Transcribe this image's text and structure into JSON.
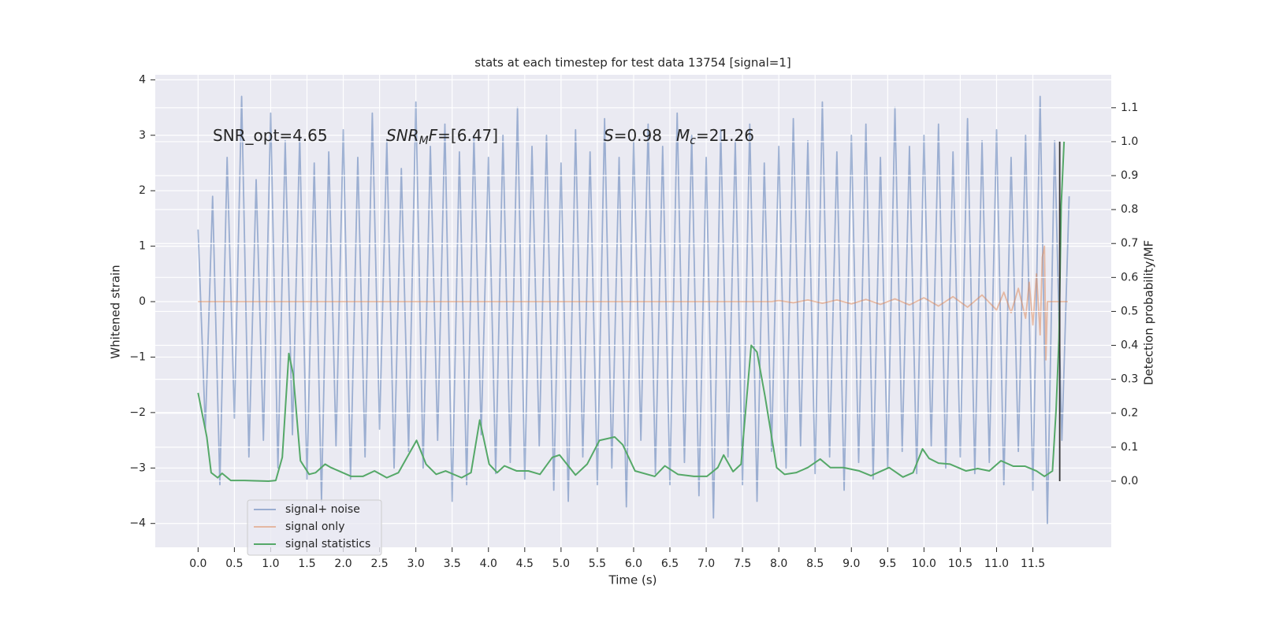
{
  "chart_data": {
    "type": "line",
    "title": "stats at each timestep for test data 13754 [signal=1]",
    "x_label": "Time (s)",
    "y_label": "Whitened strain",
    "y2_label": "Detection probability/MF",
    "grid": true,
    "legend": "lower left",
    "xlim": [
      -0.59,
      12.58
    ],
    "ylim": [
      -4.43,
      4.09
    ],
    "y2lim": [
      -0.195,
      1.197
    ],
    "xticks": [
      {
        "value": 0,
        "label": "0.0"
      },
      0.5,
      {
        "value": 1,
        "label": "1.0"
      },
      1.5,
      {
        "value": 2,
        "label": "2.0"
      },
      2.5,
      {
        "value": 3,
        "label": "3.0"
      },
      3.5,
      {
        "value": 4,
        "label": "4.0"
      },
      4.5,
      {
        "value": 5,
        "label": "5.0"
      },
      5.5,
      {
        "value": 6,
        "label": "6.0"
      },
      6.5,
      {
        "value": 7,
        "label": "7.0"
      },
      7.5,
      {
        "value": 8,
        "label": "8.0"
      },
      8.5,
      {
        "value": 9,
        "label": "9.0"
      },
      9.5,
      {
        "value": 10,
        "label": "10.0"
      },
      10.5,
      {
        "value": 11,
        "label": "11.0"
      },
      11.5
    ],
    "yticks": [
      {
        "value": -4,
        "label": "−4"
      },
      {
        "value": -3,
        "label": "−3"
      },
      {
        "value": -2,
        "label": "−2"
      },
      {
        "value": -1,
        "label": "−1"
      },
      0,
      1,
      2,
      3,
      4
    ],
    "y2ticks": [
      {
        "value": 0,
        "label": "0.0"
      },
      0.1,
      0.2,
      0.3,
      0.4,
      0.5,
      0.6,
      0.7,
      0.8,
      0.9,
      {
        "value": 1,
        "label": "1.0"
      },
      1.1
    ],
    "annotations": [
      [
        {
          "text": "SNR_opt=4.65"
        }
      ],
      [
        {
          "text": "SNR",
          "italic": true
        },
        {
          "text": "M",
          "italic": true,
          "sub": true
        },
        {
          "text": "F",
          "italic": true
        },
        {
          "text": "=[6.47]"
        }
      ],
      [
        {
          "text": "S",
          "italic": true
        },
        {
          "text": "=0.98"
        }
      ],
      [
        {
          "text": "M",
          "italic": true
        },
        {
          "text": "c",
          "italic": true,
          "sub": true
        },
        {
          "text": "=21.26"
        }
      ]
    ],
    "series": [
      {
        "name": "signal+ noise",
        "color": "#4c72b0",
        "alpha": 0.5,
        "x": [
          0,
          0.1,
          0.2,
          0.3,
          0.4,
          0.5,
          0.6,
          0.7,
          0.8,
          0.9,
          1,
          1.1,
          1.2,
          1.3,
          1.4,
          1.5,
          1.6,
          1.7,
          1.8,
          1.9,
          2,
          2.1,
          2.2,
          2.3,
          2.4,
          2.5,
          2.6,
          2.7,
          2.8,
          2.9,
          3,
          3.1,
          3.2,
          3.3,
          3.4,
          3.5,
          3.6,
          3.7,
          3.8,
          3.9,
          4,
          4.1,
          4.2,
          4.3,
          4.4,
          4.5,
          4.6,
          4.7,
          4.8,
          4.9,
          5,
          5.1,
          5.2,
          5.3,
          5.4,
          5.5,
          5.6,
          5.7,
          5.8,
          5.9,
          6,
          6.1,
          6.2,
          6.3,
          6.4,
          6.5,
          6.6,
          6.7,
          6.8,
          6.9,
          7,
          7.1,
          7.2,
          7.3,
          7.4,
          7.5,
          7.6,
          7.7,
          7.8,
          7.9,
          8,
          8.1,
          8.2,
          8.3,
          8.4,
          8.5,
          8.6,
          8.7,
          8.8,
          8.9,
          9,
          9.1,
          9.2,
          9.3,
          9.4,
          9.5,
          9.6,
          9.7,
          9.8,
          9.9,
          10,
          10.1,
          10.2,
          10.3,
          10.4,
          10.5,
          10.6,
          10.7,
          10.8,
          10.9,
          11,
          11.1,
          11.2,
          11.3,
          11.4,
          11.5,
          11.6,
          11.7,
          11.8,
          11.9,
          12
        ],
        "values": [
          1.3,
          -2.3,
          1.9,
          -3.3,
          2.6,
          -2.1,
          3.7,
          -2.8,
          2.2,
          -2.5,
          3.4,
          -3.0,
          2.9,
          -2.4,
          3.0,
          -3.2,
          2.5,
          -3.6,
          2.7,
          -2.6,
          3.1,
          -3.2,
          2.6,
          -2.8,
          3.4,
          -2.3,
          2.9,
          -3.0,
          2.4,
          -2.7,
          3.6,
          -3.0,
          2.8,
          -2.5,
          3.2,
          -3.6,
          2.7,
          -3.3,
          3.0,
          -2.4,
          2.6,
          -3.1,
          3.0,
          -2.9,
          3.5,
          -3.2,
          2.8,
          -2.6,
          3.0,
          -3.4,
          2.5,
          -3.6,
          3.1,
          -2.8,
          2.7,
          -3.3,
          3.3,
          -3.0,
          2.6,
          -3.7,
          2.9,
          -2.5,
          3.2,
          -3.1,
          2.8,
          -3.3,
          3.4,
          -2.9,
          3.0,
          -3.5,
          2.6,
          -3.9,
          3.1,
          -2.8,
          2.9,
          -3.3,
          3.2,
          -3.6,
          2.5,
          -2.7,
          2.8,
          -3.0,
          3.3,
          -2.6,
          2.9,
          -3.1,
          3.6,
          -2.8,
          2.7,
          -3.4,
          3.0,
          -2.9,
          3.2,
          -3.2,
          2.6,
          -3.0,
          3.5,
          -2.7,
          2.8,
          -3.1,
          3.0,
          -2.6,
          3.2,
          -3.0,
          2.7,
          -2.8,
          3.3,
          -3.1,
          2.9,
          -2.9,
          3.1,
          -3.3,
          2.6,
          -2.7,
          3.0,
          -3.4,
          3.7,
          -4.0,
          2.9,
          -2.5,
          1.9
        ]
      },
      {
        "name": "signal only",
        "color": "#dd8452",
        "alpha": 0.5,
        "x": [
          0,
          7.9,
          8.0,
          8.2,
          8.4,
          8.6,
          8.8,
          9.0,
          9.2,
          9.4,
          9.6,
          9.8,
          10.0,
          10.2,
          10.4,
          10.6,
          10.8,
          11.0,
          11.1,
          11.2,
          11.3,
          11.4,
          11.45,
          11.5,
          11.55,
          11.6,
          11.63,
          11.66,
          11.68,
          11.7,
          11.98
        ],
        "values": [
          0,
          0,
          0.02,
          -0.02,
          0.03,
          -0.03,
          0.03,
          -0.04,
          0.04,
          -0.05,
          0.05,
          -0.06,
          0.07,
          -0.08,
          0.09,
          -0.1,
          0.12,
          -0.15,
          0.17,
          -0.2,
          0.24,
          -0.3,
          0.35,
          -0.42,
          0.5,
          -0.6,
          0.8,
          1.0,
          -1.05,
          0,
          0
        ]
      },
      {
        "name": "signal statistics",
        "color": "#55a868",
        "alpha": 1,
        "axis": "y2",
        "x": [
          0,
          0.12,
          0.18,
          0.27,
          0.33,
          0.45,
          0.64,
          0.97,
          1.07,
          1.16,
          1.25,
          1.31,
          1.41,
          1.53,
          1.62,
          1.75,
          1.83,
          2.11,
          2.27,
          2.43,
          2.6,
          2.76,
          3.01,
          3.14,
          3.28,
          3.41,
          3.63,
          3.76,
          3.88,
          4.01,
          4.12,
          4.22,
          4.39,
          4.55,
          4.71,
          4.88,
          4.98,
          5.2,
          5.36,
          5.53,
          5.74,
          5.85,
          6.02,
          6.29,
          6.43,
          6.61,
          6.83,
          7.01,
          7.16,
          7.24,
          7.37,
          7.48,
          7.62,
          7.7,
          7.81,
          7.97,
          8.08,
          8.24,
          8.4,
          8.57,
          8.71,
          8.89,
          9.11,
          9.27,
          9.52,
          9.71,
          9.85,
          9.98,
          10.07,
          10.2,
          10.36,
          10.58,
          10.74,
          10.9,
          11.06,
          11.23,
          11.39,
          11.55,
          11.66,
          11.77,
          11.82,
          11.86,
          11.89,
          11.93
        ],
        "values": [
          0.26,
          0.13,
          0.025,
          0.01,
          0.023,
          0.002,
          0.002,
          0,
          0.002,
          0.07,
          0.376,
          0.315,
          0.06,
          0.02,
          0.025,
          0.05,
          0.04,
          0.014,
          0.014,
          0.03,
          0.01,
          0.025,
          0.12,
          0.05,
          0.02,
          0.03,
          0.01,
          0.025,
          0.18,
          0.05,
          0.025,
          0.045,
          0.03,
          0.03,
          0.02,
          0.07,
          0.077,
          0.018,
          0.05,
          0.12,
          0.13,
          0.107,
          0.03,
          0.014,
          0.045,
          0.02,
          0.014,
          0.014,
          0.04,
          0.077,
          0.028,
          0.05,
          0.4,
          0.38,
          0.25,
          0.04,
          0.02,
          0.025,
          0.04,
          0.065,
          0.04,
          0.04,
          0.03,
          0.016,
          0.04,
          0.012,
          0.025,
          0.095,
          0.067,
          0.053,
          0.05,
          0.03,
          0.037,
          0.03,
          0.06,
          0.044,
          0.044,
          0.03,
          0.014,
          0.03,
          0.21,
          0.42,
          0.81,
          1.0
        ]
      }
    ],
    "vline": {
      "x": 11.87,
      "y2": [
        0,
        1.0
      ],
      "color": "#333333"
    }
  }
}
